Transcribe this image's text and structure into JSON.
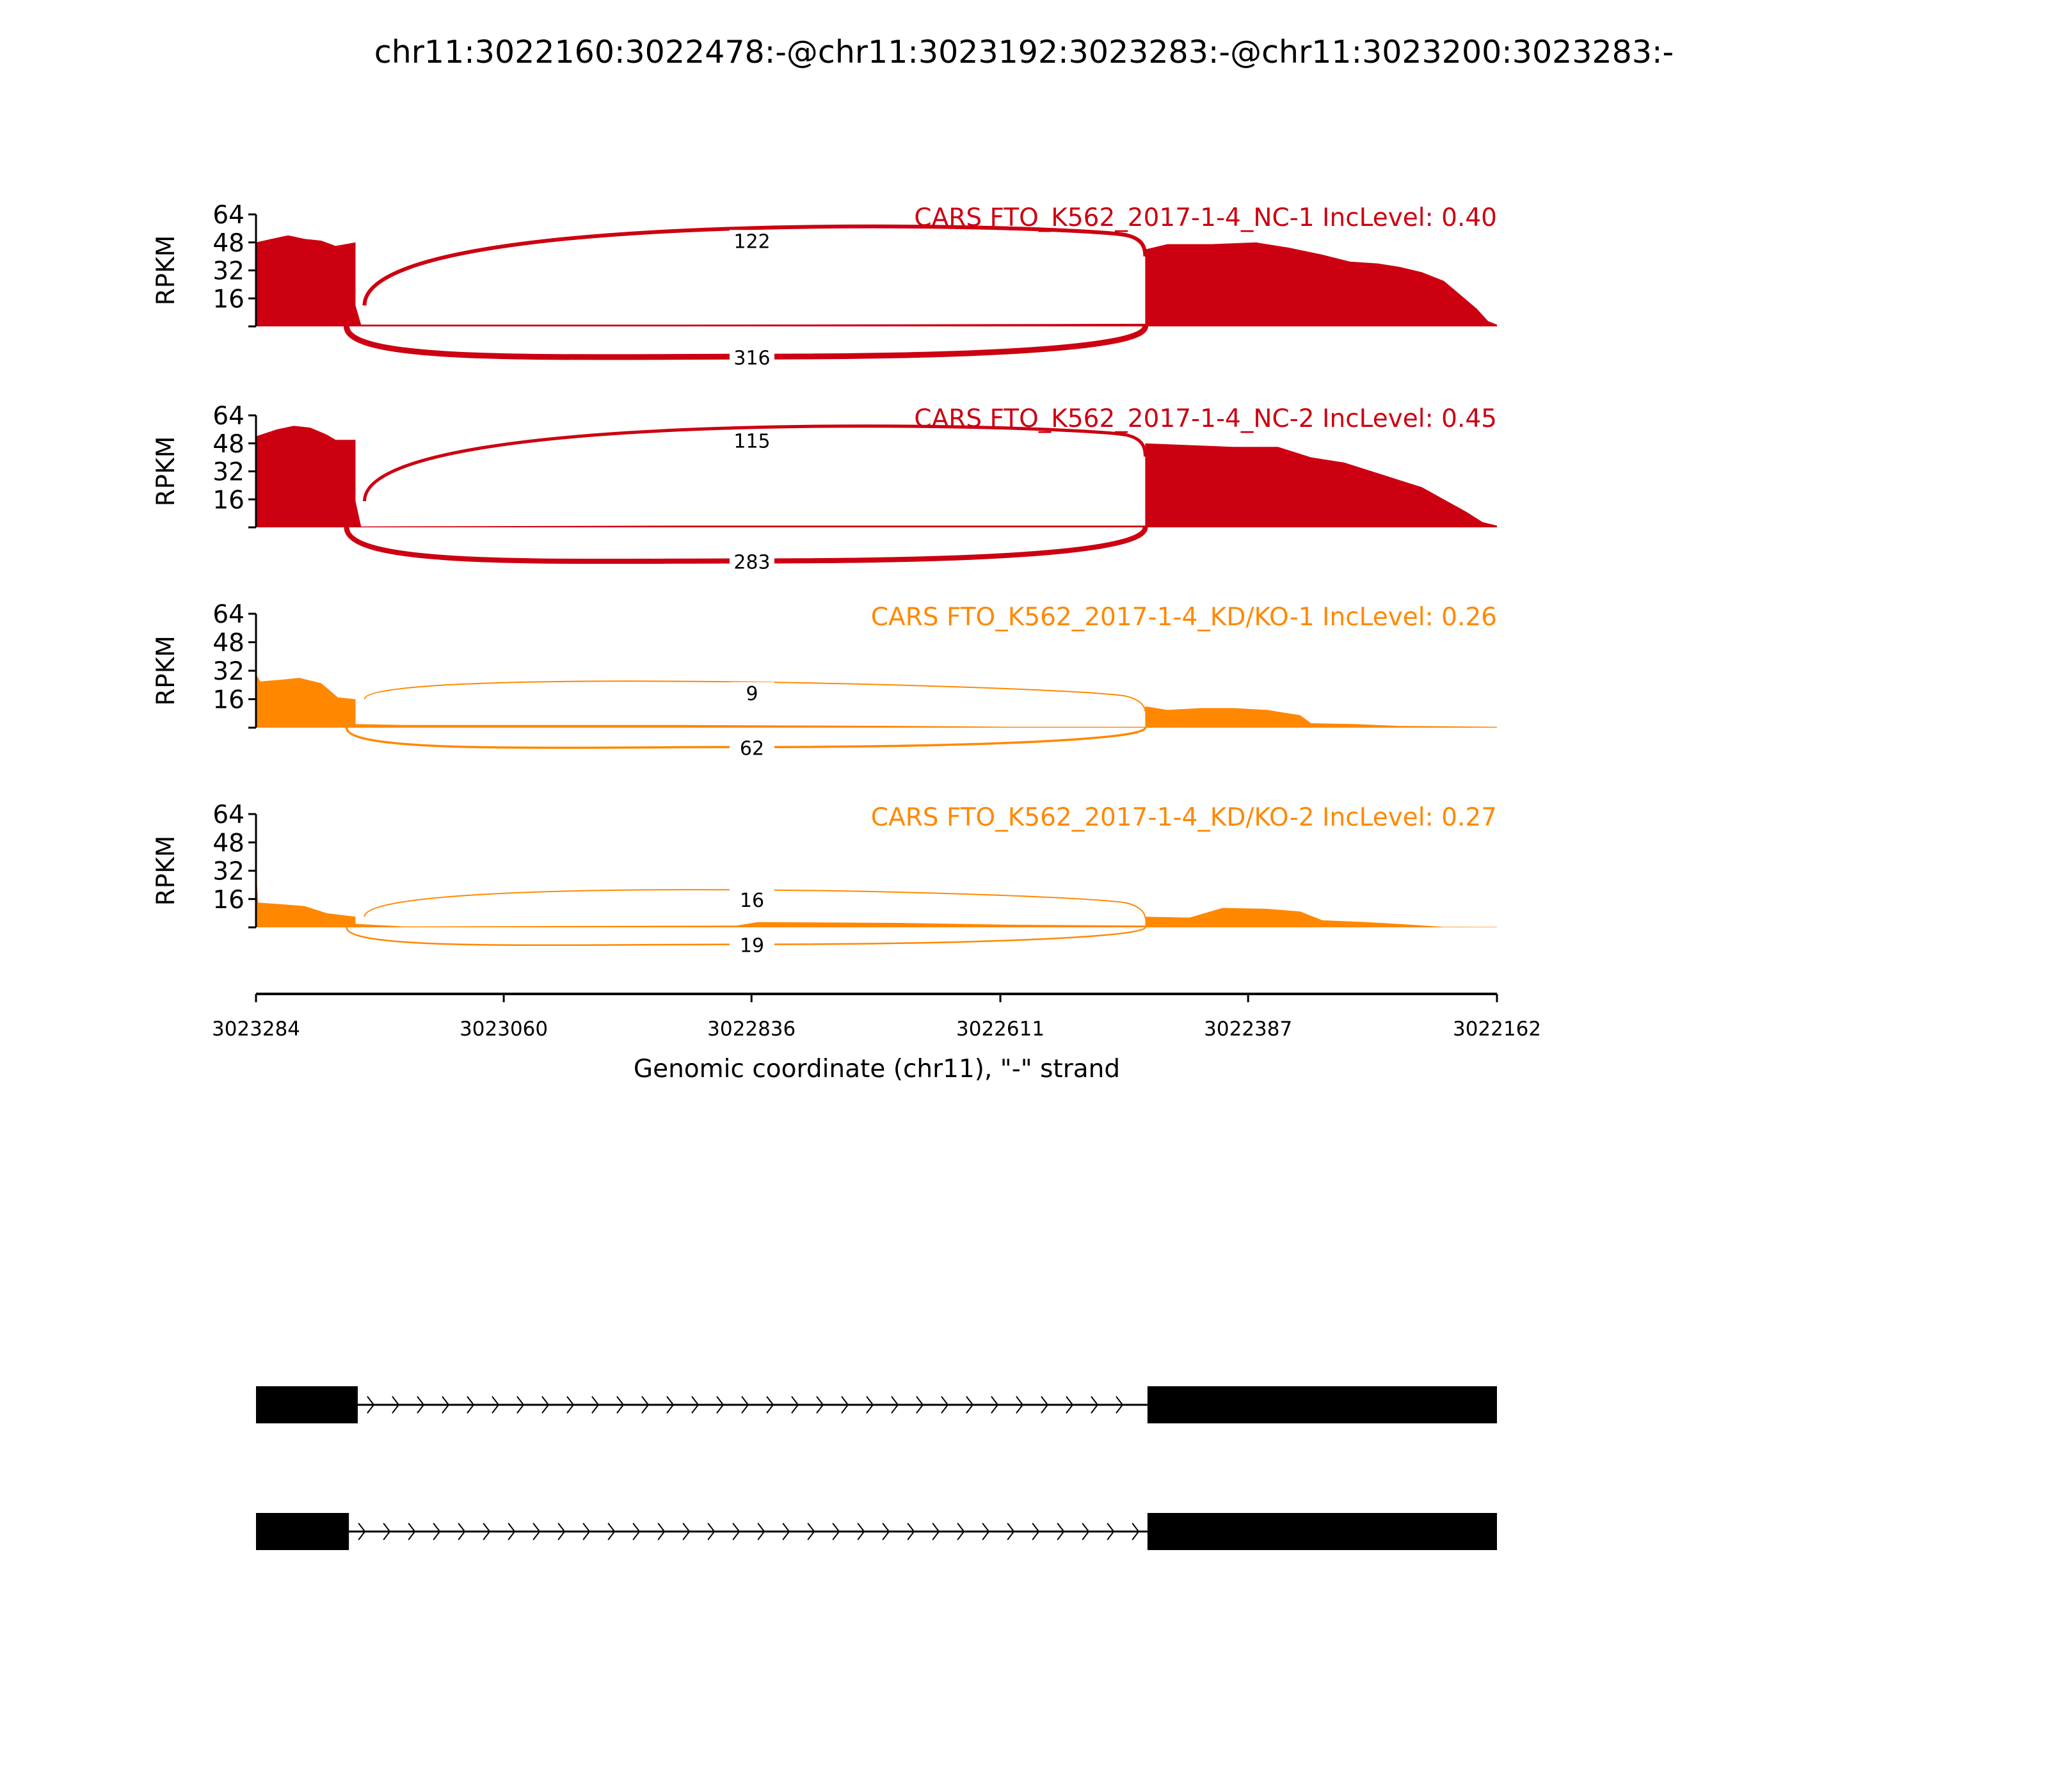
{
  "chart_data": {
    "type": "area",
    "title": "chr11:3022160:3022478:-@chr11:3023192:3023283:-@chr11:3023200:3023283:-",
    "xlabel": "Genomic coordinate (chr11), \"-\" strand",
    "ylabel": "RPKM",
    "xlim": [
      3023284,
      3022162
    ],
    "ylim": [
      0,
      64
    ],
    "yticks": [
      "16",
      "32",
      "48",
      "64"
    ],
    "xticks": [
      "3023284",
      "3023060",
      "3022836",
      "3022611",
      "3022387",
      "3022162"
    ],
    "xtick_values": [
      3023284,
      3023060,
      3022836,
      3022611,
      3022387,
      3022162
    ],
    "panels": [
      {
        "label": "CARS FTO_K562_2017-1-4_NC-1 IncLevel: 0.40",
        "color": "#CC0011",
        "junction_top": "122",
        "junction_bottom": "316",
        "coverage": [
          [
            3023284,
            48
          ],
          [
            3023270,
            50
          ],
          [
            3023255,
            52
          ],
          [
            3023240,
            50
          ],
          [
            3023225,
            49
          ],
          [
            3023212,
            46
          ],
          [
            3023194,
            48
          ],
          [
            3023194,
            12
          ],
          [
            3023189,
            1
          ],
          [
            3022900,
            1
          ],
          [
            3022700,
            1.2
          ],
          [
            3022480,
            1.5
          ],
          [
            3022480,
            44
          ],
          [
            3022460,
            47
          ],
          [
            3022420,
            47
          ],
          [
            3022380,
            48
          ],
          [
            3022350,
            45
          ],
          [
            3022320,
            41
          ],
          [
            3022295,
            37
          ],
          [
            3022270,
            36
          ],
          [
            3022250,
            34
          ],
          [
            3022230,
            31
          ],
          [
            3022210,
            26
          ],
          [
            3022195,
            18
          ],
          [
            3022180,
            10
          ],
          [
            3022170,
            3
          ],
          [
            3022162,
            1
          ]
        ]
      },
      {
        "label": "CARS FTO_K562_2017-1-4_NC-2 IncLevel: 0.45",
        "color": "#CC0011",
        "junction_top": "115",
        "junction_bottom": "283",
        "coverage": [
          [
            3023284,
            52
          ],
          [
            3023265,
            56
          ],
          [
            3023250,
            58
          ],
          [
            3023235,
            57
          ],
          [
            3023220,
            53
          ],
          [
            3023212,
            50
          ],
          [
            3023194,
            50
          ],
          [
            3023194,
            15
          ],
          [
            3023189,
            0.5
          ],
          [
            3022900,
            1
          ],
          [
            3022700,
            1
          ],
          [
            3022480,
            1
          ],
          [
            3022480,
            48
          ],
          [
            3022440,
            47
          ],
          [
            3022400,
            46
          ],
          [
            3022360,
            46
          ],
          [
            3022330,
            40
          ],
          [
            3022300,
            37
          ],
          [
            3022270,
            31
          ],
          [
            3022250,
            27
          ],
          [
            3022230,
            23
          ],
          [
            3022210,
            16
          ],
          [
            3022190,
            9
          ],
          [
            3022175,
            3
          ],
          [
            3022162,
            1
          ]
        ]
      },
      {
        "label": "CARS FTO_K562_2017-1-4_KD/KO-1 IncLevel: 0.26",
        "color": "#FF8800",
        "junction_top": "9",
        "junction_bottom": "62",
        "coverage": [
          [
            3023284,
            30
          ],
          [
            3023280,
            26
          ],
          [
            3023260,
            27
          ],
          [
            3023245,
            28
          ],
          [
            3023225,
            25
          ],
          [
            3023210,
            17
          ],
          [
            3023194,
            16
          ],
          [
            3023194,
            2
          ],
          [
            3023150,
            1.5
          ],
          [
            3022900,
            1.5
          ],
          [
            3022700,
            1
          ],
          [
            3022600,
            0.5
          ],
          [
            3022480,
            0.5
          ],
          [
            3022480,
            12
          ],
          [
            3022460,
            10
          ],
          [
            3022430,
            11
          ],
          [
            3022400,
            11
          ],
          [
            3022370,
            10
          ],
          [
            3022340,
            7
          ],
          [
            3022330,
            2.5
          ],
          [
            3022290,
            2
          ],
          [
            3022250,
            1
          ],
          [
            3022162,
            0.5
          ]
        ]
      },
      {
        "label": "CARS FTO_K562_2017-1-4_KD/KO-2 IncLevel: 0.27",
        "color": "#FF8800",
        "junction_top": "16",
        "junction_bottom": "19",
        "coverage": [
          [
            3023284,
            32
          ],
          [
            3023282,
            14
          ],
          [
            3023260,
            13
          ],
          [
            3023240,
            12
          ],
          [
            3023220,
            8
          ],
          [
            3023194,
            6
          ],
          [
            3023194,
            2
          ],
          [
            3023150,
            0.5
          ],
          [
            3022850,
            1
          ],
          [
            3022830,
            3
          ],
          [
            3022700,
            2.5
          ],
          [
            3022600,
            1.5
          ],
          [
            3022480,
            1
          ],
          [
            3022480,
            6
          ],
          [
            3022440,
            5.5
          ],
          [
            3022410,
            11
          ],
          [
            3022370,
            10.5
          ],
          [
            3022340,
            9
          ],
          [
            3022320,
            4
          ],
          [
            3022280,
            3
          ],
          [
            3022240,
            1.5
          ],
          [
            3022210,
            0.3
          ],
          [
            3022162,
            0.2
          ]
        ]
      }
    ],
    "exon1_end": 3023194,
    "exon2_start": 3022480,
    "gene_models": [
      {
        "exons": [
          [
            3023284,
            3023192
          ],
          [
            3022478,
            3022162
          ]
        ]
      },
      {
        "exons": [
          [
            3023284,
            3023200
          ],
          [
            3022478,
            3022162
          ]
        ]
      }
    ]
  }
}
